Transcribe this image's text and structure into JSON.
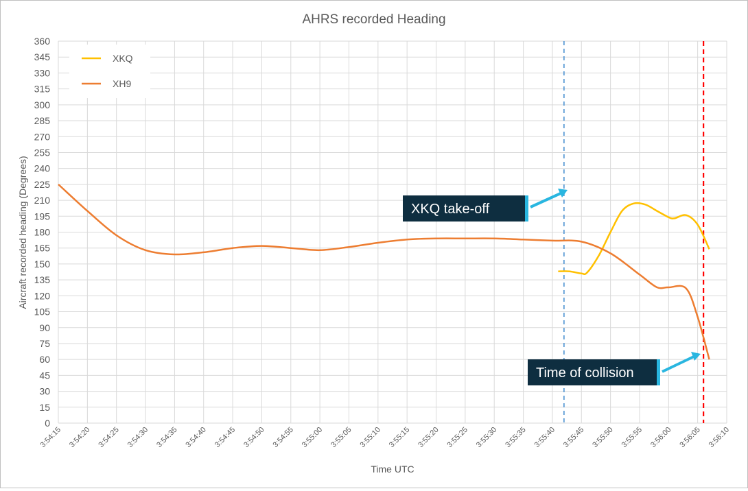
{
  "chart_data": {
    "type": "line",
    "title": "AHRS recorded Heading",
    "xlabel": "Time UTC",
    "ylabel": "Aircraft recorded heading (Degrees)",
    "ylim": [
      0,
      360
    ],
    "y_ticks": [
      0,
      15,
      30,
      45,
      60,
      75,
      90,
      105,
      120,
      135,
      150,
      165,
      180,
      195,
      210,
      225,
      240,
      255,
      270,
      285,
      300,
      315,
      330,
      345,
      360
    ],
    "x_tick_labels": [
      "3:54:15",
      "3:54:20",
      "3:54:25",
      "3:54:30",
      "3:54:35",
      "3:54:40",
      "3:54:45",
      "3:54:50",
      "3:54:55",
      "3:55:00",
      "3:55:05",
      "3:55:10",
      "3:55:15",
      "3:55:20",
      "3:55:25",
      "3:55:30",
      "3:55:35",
      "3:55:40",
      "3:55:45",
      "3:55:50",
      "3:55:55",
      "3:56:00",
      "3:56:05",
      "3:56:10"
    ],
    "grid": true,
    "legend_position": "top-left",
    "series": [
      {
        "name": "XKQ",
        "color": "#FFC000",
        "points": [
          [
            "3:55:41",
            143
          ],
          [
            "3:55:43",
            143
          ],
          [
            "3:55:45",
            141
          ],
          [
            "3:55:46",
            142
          ],
          [
            "3:55:48",
            158
          ],
          [
            "3:55:50",
            180
          ],
          [
            "3:55:52",
            200
          ],
          [
            "3:55:54",
            207
          ],
          [
            "3:55:56",
            206
          ],
          [
            "3:55:58",
            200
          ],
          [
            "3:56:00",
            194
          ],
          [
            "3:56:01",
            193
          ],
          [
            "3:56:03",
            196
          ],
          [
            "3:56:05",
            187
          ],
          [
            "3:56:07",
            164
          ]
        ]
      },
      {
        "name": "XH9",
        "color": "#ED7D31",
        "points": [
          [
            "3:54:15",
            225
          ],
          [
            "3:54:20",
            200
          ],
          [
            "3:54:25",
            177
          ],
          [
            "3:54:30",
            163
          ],
          [
            "3:54:35",
            159
          ],
          [
            "3:54:40",
            161
          ],
          [
            "3:54:45",
            165
          ],
          [
            "3:54:50",
            167
          ],
          [
            "3:54:55",
            165
          ],
          [
            "3:55:00",
            163
          ],
          [
            "3:55:05",
            166
          ],
          [
            "3:55:10",
            170
          ],
          [
            "3:55:15",
            173
          ],
          [
            "3:55:20",
            174
          ],
          [
            "3:55:25",
            174
          ],
          [
            "3:55:30",
            174
          ],
          [
            "3:55:35",
            173
          ],
          [
            "3:55:40",
            172
          ],
          [
            "3:55:45",
            171
          ],
          [
            "3:55:50",
            160
          ],
          [
            "3:55:55",
            140
          ],
          [
            "3:55:58",
            128
          ],
          [
            "3:56:00",
            128
          ],
          [
            "3:56:03",
            127
          ],
          [
            "3:56:05",
            100
          ],
          [
            "3:56:07",
            60
          ]
        ]
      }
    ],
    "reference_lines": [
      {
        "name": "XKQ take-off",
        "time": "3:55:42",
        "color": "#5B9BD5",
        "style": "dashed"
      },
      {
        "name": "Time of collision",
        "time": "3:56:06",
        "color": "#FF0000",
        "style": "dashed"
      }
    ],
    "annotations": [
      {
        "text": "XKQ take-off",
        "arrow_to_time": "3:55:42",
        "arrow_to_value": 220
      },
      {
        "text": "Time of collision",
        "arrow_to_time": "3:56:06",
        "arrow_to_value": 65
      }
    ]
  },
  "colors": {
    "grid": "#D9D9D9",
    "axis_text": "#595959",
    "callout_bg": "#0E2E40",
    "callout_text": "#FFFFFF",
    "callout_arrow": "#29B6E0"
  }
}
